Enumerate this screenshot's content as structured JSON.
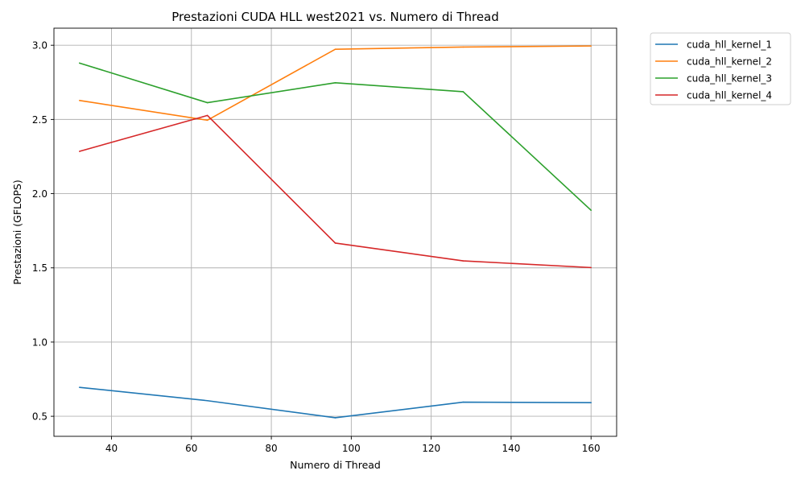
{
  "chart_data": {
    "type": "line",
    "title": "Prestazioni CUDA HLL west2021 vs. Numero di Thread",
    "xlabel": "Numero di Thread",
    "ylabel": "Prestazioni (GFLOPS)",
    "x": [
      32,
      64,
      96,
      128,
      160
    ],
    "xlim": [
      25.6,
      166.4
    ],
    "ylim": [
      0.365,
      3.115
    ],
    "xticks": [
      40,
      60,
      80,
      100,
      120,
      140,
      160
    ],
    "yticks": [
      0.5,
      1.0,
      1.5,
      2.0,
      2.5,
      3.0
    ],
    "xtick_labels": [
      "40",
      "60",
      "80",
      "100",
      "120",
      "140",
      "160"
    ],
    "ytick_labels": [
      "0.5",
      "1.0",
      "1.5",
      "2.0",
      "2.5",
      "3.0"
    ],
    "grid": true,
    "legend_position": "outside-top-right",
    "series": [
      {
        "name": "cuda_hll_kernel_1",
        "color": "#1f77b4",
        "values": [
          0.695,
          0.605,
          0.49,
          0.595,
          0.592
        ]
      },
      {
        "name": "cuda_hll_kernel_2",
        "color": "#ff7f0e",
        "values": [
          2.628,
          2.495,
          2.973,
          2.988,
          2.995
        ]
      },
      {
        "name": "cuda_hll_kernel_3",
        "color": "#2ca02c",
        "values": [
          2.88,
          2.613,
          2.747,
          2.687,
          1.888
        ]
      },
      {
        "name": "cuda_hll_kernel_4",
        "color": "#d62728",
        "values": [
          2.285,
          2.527,
          1.667,
          1.547,
          1.502
        ]
      }
    ]
  }
}
